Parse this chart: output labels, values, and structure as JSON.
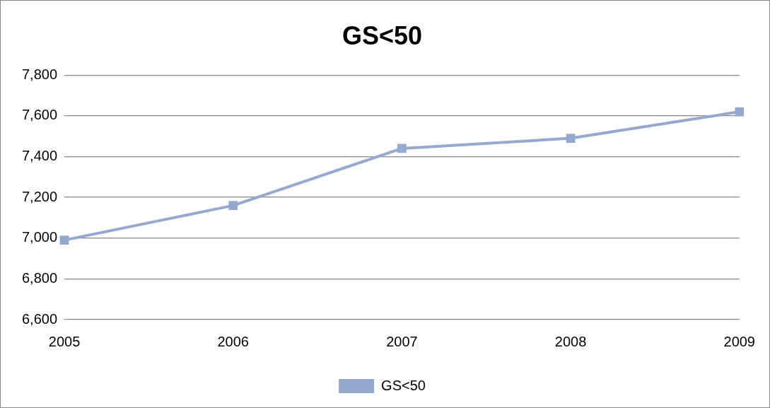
{
  "chart_data": {
    "type": "line",
    "title": "GS<50",
    "categories": [
      "2005",
      "2006",
      "2007",
      "2008",
      "2009"
    ],
    "series": [
      {
        "name": "GS<50",
        "color": "#94a8d0",
        "values": [
          6990,
          7160,
          7440,
          7490,
          7620
        ]
      }
    ],
    "ylim": [
      6600,
      7800
    ],
    "yticks": [
      {
        "value": 6600,
        "label": "6,600"
      },
      {
        "value": 6800,
        "label": "6,800"
      },
      {
        "value": 7000,
        "label": "7,000"
      },
      {
        "value": 7200,
        "label": "7,200"
      },
      {
        "value": 7400,
        "label": "7,400"
      },
      {
        "value": 7600,
        "label": "7,600"
      },
      {
        "value": 7800,
        "label": "7,800"
      }
    ],
    "grid": "y",
    "legend": "bottom",
    "marker": "square",
    "line_style": "solid"
  }
}
